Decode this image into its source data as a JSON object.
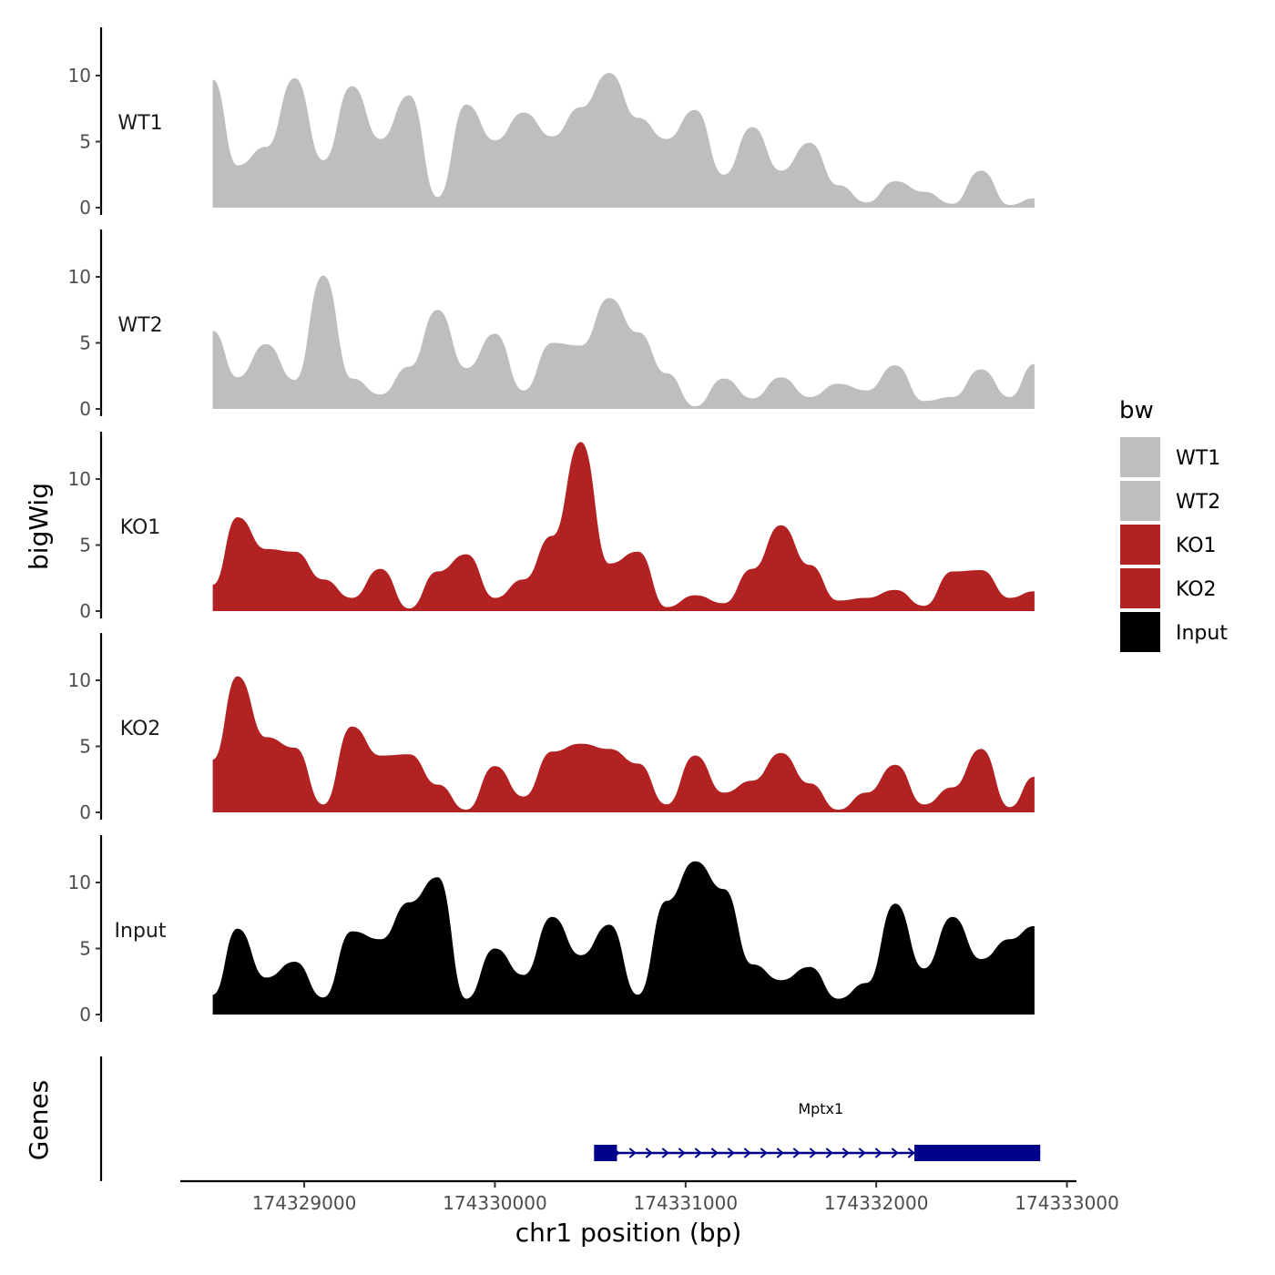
{
  "chart_data": {
    "type": "area",
    "ylabel": "bigWig",
    "xlabel": "chr1 position (bp)",
    "xlim": [
      174328350,
      174333050
    ],
    "x_ticks": [
      174329000,
      174330000,
      174331000,
      174332000,
      174333000
    ],
    "x_tick_labels": [
      "174329000",
      "174330000",
      "174331000",
      "174332000",
      "174333000"
    ],
    "ylim": [
      0,
      13.5
    ],
    "y_ticks": [
      0,
      5,
      10
    ],
    "y_tick_labels": [
      "0",
      "5",
      "10"
    ],
    "legend": {
      "title": "bw",
      "position": "right"
    },
    "x": [
      174328520,
      174328650,
      174328800,
      174328950,
      174329100,
      174329250,
      174329400,
      174329550,
      174329700,
      174329850,
      174330000,
      174330150,
      174330300,
      174330450,
      174330600,
      174330750,
      174330900,
      174331050,
      174331200,
      174331350,
      174331500,
      174331650,
      174331800,
      174331950,
      174332100,
      174332250,
      174332400,
      174332550,
      174332700,
      174332830
    ],
    "series": [
      {
        "name": "WT1",
        "label": "WT1",
        "color": "#bebebe",
        "values": [
          9.7,
          3.2,
          4.6,
          9.8,
          3.6,
          9.2,
          5.2,
          8.5,
          0.8,
          7.8,
          5.1,
          7.2,
          5.4,
          7.6,
          10.2,
          6.8,
          5.2,
          7.4,
          2.5,
          6.1,
          2.8,
          4.9,
          1.7,
          0.4,
          2.0,
          1.2,
          0.3,
          2.8,
          0.2,
          0.7
        ]
      },
      {
        "name": "WT2",
        "label": "WT2",
        "color": "#bebebe",
        "values": [
          5.9,
          2.4,
          4.9,
          2.2,
          10.1,
          2.3,
          1.1,
          3.2,
          7.5,
          3.1,
          5.7,
          1.4,
          5.0,
          4.8,
          8.4,
          5.8,
          2.7,
          0.2,
          2.3,
          0.8,
          2.4,
          0.9,
          1.9,
          1.4,
          3.3,
          0.6,
          0.9,
          3.0,
          0.9,
          3.4
        ]
      },
      {
        "name": "KO1",
        "label": "KO1",
        "color": "#b22222",
        "values": [
          2.0,
          7.1,
          4.7,
          4.5,
          2.4,
          1.0,
          3.2,
          0.2,
          3.0,
          4.3,
          1.0,
          2.4,
          5.7,
          12.8,
          3.6,
          4.5,
          0.3,
          1.2,
          0.6,
          3.2,
          6.5,
          3.5,
          0.8,
          1.0,
          1.6,
          0.4,
          3.0,
          3.1,
          1.0,
          1.5
        ]
      },
      {
        "name": "KO2",
        "label": "KO2",
        "color": "#b22222",
        "values": [
          4.0,
          10.3,
          5.7,
          4.9,
          0.6,
          6.5,
          4.3,
          4.4,
          2.1,
          0.2,
          3.5,
          1.2,
          4.6,
          5.2,
          4.8,
          3.7,
          0.6,
          4.3,
          1.5,
          2.4,
          4.5,
          2.2,
          0.2,
          1.5,
          3.6,
          0.6,
          1.9,
          4.8,
          0.4,
          2.7
        ]
      },
      {
        "name": "Input",
        "label": "Input",
        "color": "#000000",
        "values": [
          1.5,
          6.5,
          2.8,
          4.0,
          1.3,
          6.3,
          5.7,
          8.5,
          10.4,
          1.2,
          5.0,
          3.0,
          7.4,
          4.5,
          6.8,
          1.5,
          8.6,
          11.6,
          9.5,
          3.8,
          2.6,
          3.6,
          1.2,
          2.4,
          8.4,
          3.5,
          7.4,
          4.2,
          5.7,
          6.7
        ]
      }
    ],
    "genes": {
      "panel_label": "Genes",
      "items": [
        {
          "name": "Mptx1",
          "start": 174330520,
          "end": 174332860,
          "strand": "+",
          "exons": [
            [
              174330520,
              174330640
            ],
            [
              174332200,
              174332860
            ]
          ],
          "color": "#00008b"
        }
      ]
    }
  }
}
